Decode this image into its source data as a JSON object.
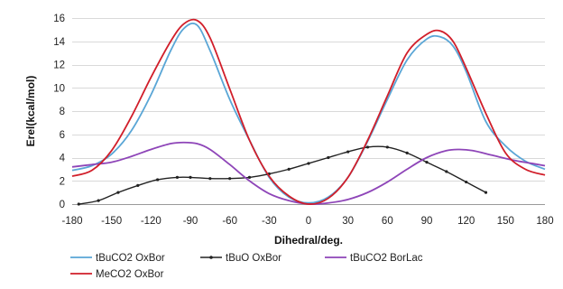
{
  "chart_data": {
    "type": "line",
    "xlabel": "Dihedral/deg.",
    "ylabel": "Erel(kcal/mol)",
    "xlim": [
      -180,
      180
    ],
    "ylim": [
      0,
      16
    ],
    "xticks": [
      -180,
      -150,
      -120,
      -90,
      -60,
      -30,
      0,
      30,
      60,
      90,
      120,
      150,
      180
    ],
    "yticks": [
      0,
      2,
      4,
      6,
      8,
      10,
      12,
      14,
      16
    ],
    "grid": "horizontal",
    "legend_position": "bottom",
    "series": [
      {
        "name": "tBuCO2 OxBor",
        "color": "#5aa6d6",
        "marker": "none",
        "x": [
          -180,
          -165,
          -150,
          -135,
          -120,
          -105,
          -95,
          -85,
          -75,
          -60,
          -45,
          -30,
          -15,
          0,
          15,
          30,
          45,
          60,
          75,
          90,
          100,
          110,
          120,
          135,
          150,
          165,
          180
        ],
        "y": [
          2.9,
          3.3,
          4.3,
          6.3,
          9.4,
          13.2,
          15.1,
          15.4,
          13.2,
          9.0,
          5.5,
          2.3,
          0.6,
          0.1,
          0.6,
          2.3,
          5.4,
          9.0,
          12.4,
          14.2,
          14.4,
          13.6,
          11.4,
          7.1,
          5.0,
          3.7,
          3.0
        ]
      },
      {
        "name": "tBuO OxBor",
        "color": "#222222",
        "marker": "dot",
        "x": [
          -175,
          -160,
          -145,
          -130,
          -115,
          -100,
          -90,
          -75,
          -60,
          -45,
          -30,
          -15,
          0,
          15,
          30,
          45,
          60,
          75,
          90,
          105,
          120,
          135
        ],
        "y": [
          0.0,
          0.3,
          1.0,
          1.6,
          2.1,
          2.3,
          2.3,
          2.2,
          2.2,
          2.3,
          2.6,
          3.0,
          3.5,
          4.0,
          4.5,
          4.9,
          4.9,
          4.4,
          3.6,
          2.8,
          1.9,
          1.0
        ]
      },
      {
        "name": "tBuCO2 BorLac",
        "color": "#8e45b8",
        "marker": "none",
        "x": [
          -180,
          -165,
          -150,
          -135,
          -120,
          -105,
          -95,
          -85,
          -75,
          -60,
          -45,
          -30,
          -15,
          0,
          15,
          30,
          45,
          60,
          75,
          90,
          105,
          115,
          125,
          140,
          155,
          170,
          180
        ],
        "y": [
          3.2,
          3.4,
          3.6,
          4.1,
          4.7,
          5.2,
          5.3,
          5.2,
          4.7,
          3.4,
          2.0,
          0.9,
          0.3,
          0.0,
          0.1,
          0.4,
          1.0,
          1.9,
          3.0,
          4.0,
          4.6,
          4.7,
          4.6,
          4.2,
          3.8,
          3.5,
          3.3
        ]
      },
      {
        "name": "MeCO2 OxBor",
        "color": "#d11e2a",
        "marker": "none",
        "x": [
          -180,
          -165,
          -150,
          -135,
          -120,
          -105,
          -95,
          -85,
          -75,
          -60,
          -45,
          -30,
          -15,
          0,
          15,
          30,
          45,
          60,
          75,
          90,
          100,
          110,
          120,
          135,
          150,
          165,
          180
        ],
        "y": [
          2.4,
          2.9,
          4.6,
          7.5,
          10.9,
          14.0,
          15.5,
          15.8,
          14.3,
          9.9,
          5.5,
          2.4,
          0.7,
          0.0,
          0.5,
          2.3,
          5.5,
          9.3,
          13.0,
          14.6,
          14.9,
          14.0,
          11.7,
          7.8,
          4.4,
          3.0,
          2.5
        ]
      }
    ]
  }
}
